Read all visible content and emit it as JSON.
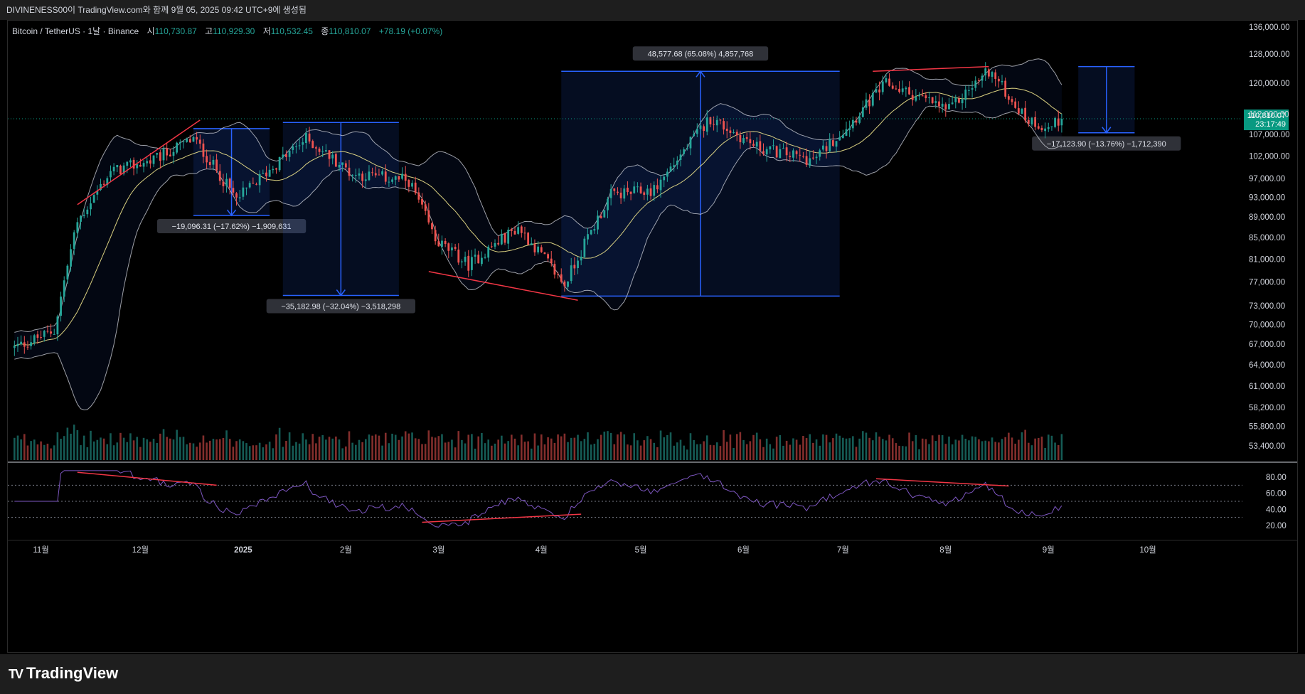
{
  "header": {
    "caption": "DIVINENESS00이 TradingView.com와 함께 9월 05, 2025 09:42 UTC+9에 생성됨"
  },
  "legend": {
    "symbol": "Bitcoin / TetherUS · 1날 · Binance",
    "open_label": "시",
    "open": "110,730.87",
    "high_label": "고",
    "high": "110,929.30",
    "low_label": "저",
    "low": "110,532.45",
    "close_label": "종",
    "close": "110,810.07",
    "change": "+78.19 (+0.07%)"
  },
  "last_price": {
    "price": "110,810.07",
    "countdown": "23:17:49",
    "color": "#089981"
  },
  "brand": {
    "name": "TradingView"
  },
  "colors": {
    "up": "#26a69a",
    "down": "#ef5350",
    "ma": "#f0e68c",
    "band": "#d1d4dc",
    "measure": "#2962ff",
    "rsi": "#7e57c2",
    "trendline": "#f23645"
  },
  "chart_data": {
    "type": "candlestick",
    "symbol": "BTCUSDT",
    "interval": "1D",
    "price_axis": [
      "136,000.00",
      "128,000.00",
      "120,000.00",
      "112,000.00",
      "107,000.00",
      "102,000.00",
      "97,000.00",
      "93,000.00",
      "89,000.00",
      "85,000.00",
      "81,000.00",
      "77,000.00",
      "73,000.00",
      "70,000.00",
      "67,000.00",
      "64,000.00",
      "61,000.00",
      "58,200.00",
      "55,800.00",
      "53,400.00"
    ],
    "time_axis": [
      "11월",
      "12월",
      "2025",
      "2월",
      "3월",
      "4월",
      "5월",
      "6월",
      "7월",
      "8월",
      "9월",
      "10월"
    ],
    "rsi_axis": [
      "80.00",
      "60.00",
      "40.00",
      "20.00"
    ],
    "price_anchors": [
      {
        "date": "2024-10-24",
        "close": 66500
      },
      {
        "date": "2024-11-05",
        "close": 69000
      },
      {
        "date": "2024-11-12",
        "close": 88000
      },
      {
        "date": "2024-11-22",
        "close": 98500
      },
      {
        "date": "2024-12-05",
        "close": 101000
      },
      {
        "date": "2024-12-17",
        "close": 106000
      },
      {
        "date": "2024-12-30",
        "close": 92500
      },
      {
        "date": "2025-01-20",
        "close": 106000
      },
      {
        "date": "2025-02-03",
        "close": 98000
      },
      {
        "date": "2025-02-20",
        "close": 96500
      },
      {
        "date": "2025-02-28",
        "close": 84500
      },
      {
        "date": "2025-03-10",
        "close": 80000
      },
      {
        "date": "2025-03-25",
        "close": 87000
      },
      {
        "date": "2025-04-08",
        "close": 76500
      },
      {
        "date": "2025-04-22",
        "close": 93500
      },
      {
        "date": "2025-05-05",
        "close": 94500
      },
      {
        "date": "2025-05-22",
        "close": 111000
      },
      {
        "date": "2025-06-05",
        "close": 104000
      },
      {
        "date": "2025-06-22",
        "close": 101000
      },
      {
        "date": "2025-07-03",
        "close": 109500
      },
      {
        "date": "2025-07-14",
        "close": 119800
      },
      {
        "date": "2025-08-02",
        "close": 113000
      },
      {
        "date": "2025-08-14",
        "close": 123500
      },
      {
        "date": "2025-08-25",
        "close": 111000
      },
      {
        "date": "2025-09-01",
        "close": 108500
      },
      {
        "date": "2025-09-05",
        "close": 110810
      }
    ],
    "measurements": [
      {
        "label": "−19,096.31 (−17.62%) −1,909,631",
        "from_price": 108400,
        "to_price": 89300,
        "from_date": "2024-12-17",
        "to_date": "2025-01-09"
      },
      {
        "label": "−35,182.98 (−32.04%) −3,518,298",
        "from_price": 109900,
        "to_price": 74700,
        "from_date": "2025-01-13",
        "to_date": "2025-02-17"
      },
      {
        "label": "48,577.68 (65.08%) 4,857,768",
        "from_price": 74600,
        "to_price": 123200,
        "from_date": "2025-04-07",
        "to_date": "2025-06-30"
      },
      {
        "label": "−17,123.90 (−13.76%) −1,712,390",
        "from_price": 124500,
        "to_price": 107400,
        "from_date": "2025-09-10",
        "to_date": "2025-09-27"
      }
    ]
  }
}
